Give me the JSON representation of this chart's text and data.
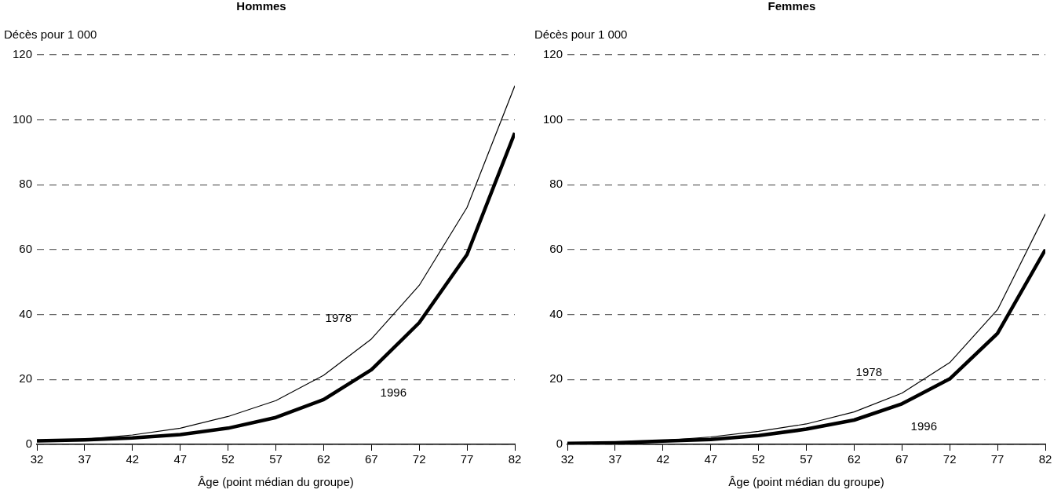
{
  "chart_data": [
    {
      "type": "line",
      "title": "Hommes",
      "ylabel": "Décès pour 1 000",
      "xlabel": "Âge (point médian du groupe)",
      "x": [
        32,
        37,
        42,
        47,
        52,
        57,
        62,
        67,
        72,
        77,
        82
      ],
      "series": [
        {
          "name": "1978",
          "color": "#000000",
          "values": [
            1.2,
            1.6,
            2.9,
            5,
            8.6,
            13.5,
            21.3,
            32.5,
            49,
            73,
            110.5
          ]
        },
        {
          "name": "1996",
          "color": "#000000",
          "values": [
            1.1,
            1.4,
            2,
            3,
            5,
            8.3,
            13.8,
            23,
            37.5,
            58.5,
            96
          ]
        }
      ],
      "xlim": [
        32,
        82
      ],
      "xticks": [
        32,
        37,
        42,
        47,
        52,
        57,
        62,
        67,
        72,
        77,
        82
      ],
      "ylim": [
        0,
        120
      ],
      "yticks": [
        0,
        20,
        40,
        60,
        80,
        100,
        120
      ],
      "grid": "y",
      "legend": false,
      "marker": "none"
    },
    {
      "type": "line",
      "title": "Femmes",
      "ylabel": "Décès pour 1 000",
      "xlabel": "Âge (point médian du groupe)",
      "x": [
        32,
        37,
        42,
        47,
        52,
        57,
        62,
        67,
        72,
        77,
        82
      ],
      "series": [
        {
          "name": "1978",
          "color": "#000000",
          "values": [
            0.4,
            0.7,
            1.2,
            2.3,
            4,
            6.3,
            10,
            15.8,
            25.2,
            41.5,
            71
          ]
        },
        {
          "name": "1996",
          "color": "#000000",
          "values": [
            0.3,
            0.5,
            1,
            1.5,
            2.7,
            4.7,
            7.5,
            12.5,
            20.2,
            34.2,
            60
          ]
        }
      ],
      "xlim": [
        32,
        82
      ],
      "xticks": [
        32,
        37,
        42,
        47,
        52,
        57,
        62,
        67,
        72,
        77,
        82
      ],
      "ylim": [
        0,
        120
      ],
      "yticks": [
        0,
        20,
        40,
        60,
        80,
        100,
        120
      ],
      "grid": "y",
      "legend": false,
      "marker": "none"
    }
  ]
}
